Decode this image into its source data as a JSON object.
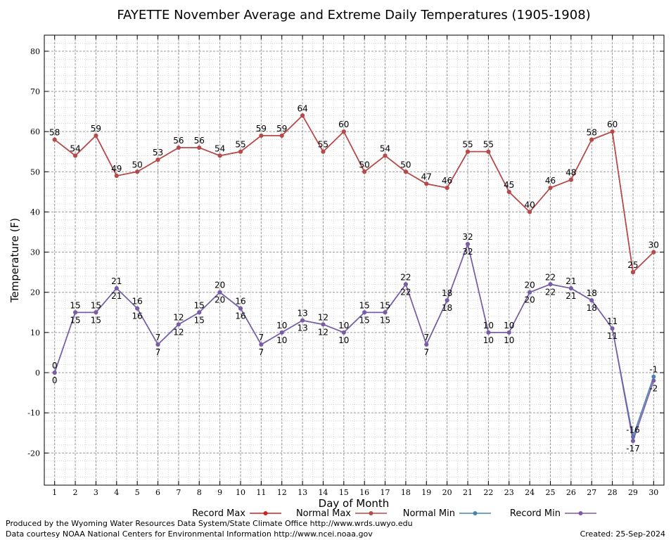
{
  "chart_data": {
    "type": "line",
    "title": "FAYETTE November Average and Extreme Daily Temperatures (1905-1908)",
    "xlabel": "Day of Month",
    "ylabel": "Temperature (F)",
    "xlim": [
      0.5,
      30.5
    ],
    "ylim": [
      -28,
      84
    ],
    "yticks": [
      -20,
      -10,
      0,
      10,
      20,
      30,
      40,
      50,
      60,
      70,
      80
    ],
    "grid": true,
    "legend_placement": "bottom",
    "x": [
      1,
      2,
      3,
      4,
      5,
      6,
      7,
      8,
      9,
      10,
      11,
      12,
      13,
      14,
      15,
      16,
      17,
      18,
      19,
      20,
      21,
      22,
      23,
      24,
      25,
      26,
      27,
      28,
      29,
      30
    ],
    "series": [
      {
        "name": "Record Max",
        "color": "#cc2222",
        "values": [
          58,
          54,
          59,
          49,
          50,
          53,
          56,
          56,
          54,
          55,
          59,
          59,
          64,
          55,
          60,
          50,
          54,
          50,
          47,
          46,
          55,
          55,
          45,
          40,
          46,
          48,
          58,
          60,
          25,
          30
        ],
        "labels_shown": true,
        "label_position": "above"
      },
      {
        "name": "Normal Max",
        "color": "#b54a4a",
        "values": [
          58,
          54,
          59,
          49,
          50,
          53,
          56,
          56,
          54,
          55,
          59,
          59,
          64,
          55,
          60,
          50,
          54,
          50,
          47,
          46,
          55,
          55,
          45,
          40,
          46,
          48,
          58,
          60,
          25,
          30
        ],
        "labels_shown": false
      },
      {
        "name": "Normal Min",
        "color": "#4682b4",
        "values": [
          0,
          15,
          15,
          21,
          16,
          7,
          12,
          15,
          20,
          16,
          7,
          10,
          13,
          12,
          10,
          15,
          15,
          22,
          7,
          18,
          32,
          10,
          10,
          20,
          22,
          21,
          18,
          11,
          -16,
          -1
        ],
        "labels_shown": true,
        "label_position": "above"
      },
      {
        "name": "Record Min",
        "color": "#7b5aa6",
        "values": [
          0,
          15,
          15,
          21,
          16,
          7,
          12,
          15,
          20,
          16,
          7,
          10,
          13,
          12,
          10,
          15,
          15,
          22,
          7,
          18,
          32,
          10,
          10,
          20,
          22,
          21,
          18,
          11,
          -17,
          -2
        ],
        "labels_shown": true,
        "label_position": "below"
      }
    ]
  },
  "footer": {
    "produced_by": "Produced by the Wyoming Water Resources Data System/State Climate Office http://www.wrds.uwyo.edu",
    "data_courtesy": "Data courtesy NOAA National Centers for Environmental Information http://www.ncei.noaa.gov",
    "created": "Created: 25-Sep-2024"
  }
}
